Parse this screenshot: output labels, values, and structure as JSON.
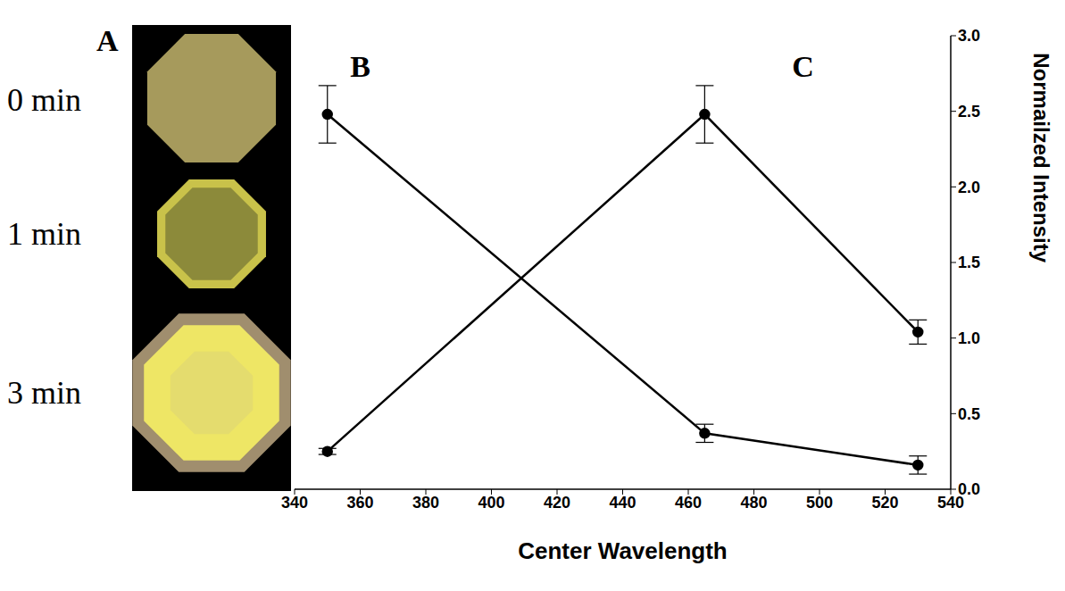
{
  "chart_data": {
    "type": "line",
    "xlabel": "Center Wavelength",
    "ylabel": "Normailzed Intensity",
    "x": [
      350,
      465,
      530
    ],
    "xlim": [
      340,
      540
    ],
    "xticks": [
      340,
      360,
      380,
      400,
      420,
      440,
      460,
      480,
      500,
      520,
      540
    ],
    "ylim": [
      0,
      3
    ],
    "yticks": [
      {
        "value": 0,
        "label": "0.0"
      },
      {
        "value": 0.5,
        "label": "0.5"
      },
      {
        "value": 1,
        "label": "1.0"
      },
      {
        "value": 1.5,
        "label": "1.5"
      },
      {
        "value": 2,
        "label": "2.0"
      },
      {
        "value": 2.5,
        "label": "2.5"
      },
      {
        "value": 3,
        "label": "3.0"
      }
    ],
    "grid": false,
    "marker": "circle",
    "series": [
      {
        "color": "#000000",
        "values": [
          2.48,
          0.37,
          0.16
        ],
        "errors": [
          0.19,
          0.06,
          0.06
        ]
      },
      {
        "color": "#000000",
        "values": [
          0.25,
          2.48,
          1.04
        ],
        "errors": [
          0.02,
          0.19,
          0.08
        ]
      }
    ],
    "annotations": [
      {
        "text": "B",
        "x": 360,
        "y": 2.8
      },
      {
        "text": "C",
        "x": 495,
        "y": 2.8
      }
    ]
  },
  "image_panel": {
    "label": "A",
    "rows": [
      "0 min",
      "1 min",
      "3 min"
    ]
  }
}
